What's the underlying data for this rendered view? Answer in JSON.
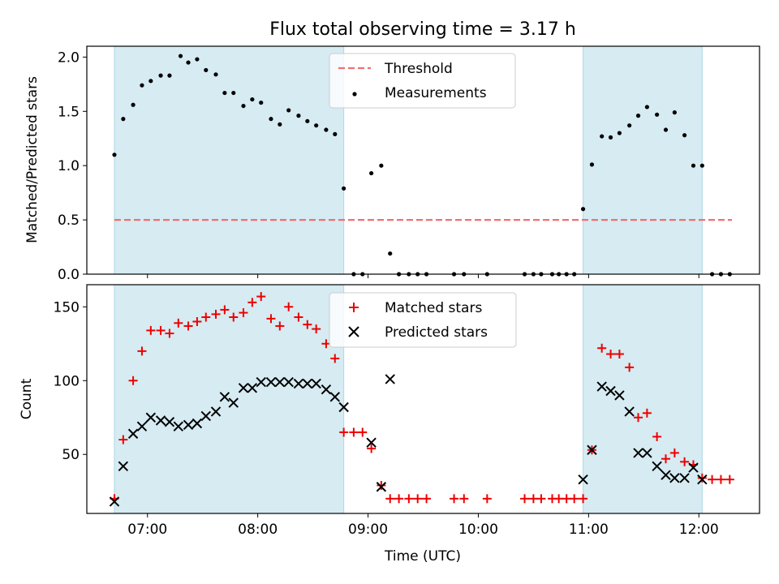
{
  "title": "Flux total observing time = 3.17 h",
  "chart_data": [
    {
      "type": "scatter",
      "panel": "top",
      "ylabel": "Matched/Predicted stars",
      "xlim": [
        6.45,
        12.55
      ],
      "ylim": [
        0.0,
        2.1
      ],
      "yticks": [
        "0.0",
        "0.5",
        "1.0",
        "1.5",
        "2.0"
      ],
      "shaded_intervals": [
        [
          6.7,
          8.78
        ],
        [
          10.95,
          12.03
        ]
      ],
      "threshold": {
        "name": "Threshold",
        "value": 0.5,
        "x_range": [
          6.7,
          12.3
        ],
        "color": "#f07070"
      },
      "legend": [
        "Threshold",
        "Measurements"
      ],
      "legend_position": "top-center",
      "series": [
        {
          "name": "Measurements",
          "color": "#000000",
          "x": [
            6.7,
            6.78,
            6.87,
            6.95,
            7.03,
            7.12,
            7.2,
            7.3,
            7.37,
            7.45,
            7.53,
            7.62,
            7.7,
            7.78,
            7.87,
            7.95,
            8.03,
            8.12,
            8.2,
            8.28,
            8.37,
            8.45,
            8.53,
            8.62,
            8.7,
            8.78,
            8.87,
            8.95,
            9.03,
            9.12,
            9.2,
            9.28,
            9.37,
            9.45,
            9.53,
            9.78,
            9.87,
            10.08,
            10.42,
            10.5,
            10.57,
            10.67,
            10.73,
            10.8,
            10.87,
            10.95,
            11.03,
            11.12,
            11.2,
            11.28,
            11.37,
            11.45,
            11.53,
            11.62,
            11.7,
            11.78,
            11.87,
            11.95,
            12.03,
            12.12,
            12.2,
            12.28
          ],
          "y": [
            1.1,
            1.43,
            1.56,
            1.74,
            1.78,
            1.83,
            1.83,
            2.01,
            1.95,
            1.98,
            1.88,
            1.84,
            1.67,
            1.67,
            1.55,
            1.61,
            1.58,
            1.43,
            1.38,
            1.51,
            1.46,
            1.41,
            1.37,
            1.33,
            1.29,
            0.79,
            0.0,
            0.0,
            0.93,
            1.0,
            0.19,
            0.0,
            0.0,
            0.0,
            0.0,
            0.0,
            0.0,
            0.0,
            0.0,
            0.0,
            0.0,
            0.0,
            0.0,
            0.0,
            0.0,
            0.6,
            1.01,
            1.27,
            1.26,
            1.3,
            1.37,
            1.46,
            1.54,
            1.47,
            1.33,
            1.49,
            1.28,
            1.0,
            1.0,
            0.0,
            0.0,
            0.0
          ]
        }
      ]
    },
    {
      "type": "scatter",
      "panel": "bottom",
      "xlabel": "Time (UTC)",
      "ylabel": "Count",
      "xlim": [
        6.45,
        12.55
      ],
      "ylim": [
        10,
        165
      ],
      "yticks": [
        "50",
        "100",
        "150"
      ],
      "xtick_labels": [
        "07:00",
        "08:00",
        "09:00",
        "10:00",
        "11:00",
        "12:00"
      ],
      "shaded_intervals": [
        [
          6.7,
          8.78
        ],
        [
          10.95,
          12.03
        ]
      ],
      "legend": [
        "Matched stars",
        "Predicted stars"
      ],
      "legend_position": "top-center",
      "series": [
        {
          "name": "Matched stars",
          "marker": "+",
          "color": "#ee0000",
          "x": [
            6.7,
            6.78,
            6.87,
            6.95,
            7.03,
            7.12,
            7.2,
            7.28,
            7.37,
            7.45,
            7.53,
            7.62,
            7.7,
            7.78,
            7.87,
            7.95,
            8.03,
            8.12,
            8.2,
            8.28,
            8.37,
            8.45,
            8.53,
            8.62,
            8.7,
            8.78,
            8.87,
            8.95,
            9.03,
            9.12,
            9.2,
            9.28,
            9.37,
            9.45,
            9.53,
            9.78,
            9.87,
            10.08,
            10.42,
            10.5,
            10.57,
            10.67,
            10.73,
            10.8,
            10.87,
            10.95,
            11.03,
            11.12,
            11.2,
            11.28,
            11.37,
            11.45,
            11.53,
            11.62,
            11.7,
            11.78,
            11.87,
            11.95,
            12.03,
            12.12,
            12.2,
            12.28
          ],
          "y": [
            20,
            60,
            100,
            120,
            134,
            134,
            132,
            139,
            137,
            140,
            143,
            145,
            148,
            143,
            146,
            153,
            157,
            142,
            137,
            150,
            143,
            138,
            135,
            125,
            115,
            65,
            65,
            65,
            54,
            29,
            20,
            20,
            20,
            20,
            20,
            20,
            20,
            20,
            20,
            20,
            20,
            20,
            20,
            20,
            20,
            20,
            53,
            122,
            118,
            118,
            109,
            75,
            78,
            62,
            47,
            51,
            45,
            43,
            34,
            33,
            33,
            33
          ]
        },
        {
          "name": "Predicted stars",
          "marker": "x",
          "color": "#000000",
          "x": [
            6.7,
            6.78,
            6.87,
            6.95,
            7.03,
            7.12,
            7.2,
            7.28,
            7.37,
            7.45,
            7.53,
            7.62,
            7.7,
            7.78,
            7.87,
            7.95,
            8.03,
            8.12,
            8.2,
            8.28,
            8.37,
            8.45,
            8.53,
            8.62,
            8.7,
            8.78,
            9.03,
            9.12,
            9.2,
            10.95,
            11.03,
            11.12,
            11.2,
            11.28,
            11.37,
            11.45,
            11.53,
            11.62,
            11.7,
            11.78,
            11.87,
            11.95,
            12.03
          ],
          "y": [
            18,
            42,
            64,
            69,
            75,
            73,
            72,
            69,
            70,
            71,
            76,
            79,
            89,
            85,
            95,
            95,
            99,
            99,
            99,
            99,
            98,
            98,
            98,
            94,
            89,
            82,
            58,
            28,
            101,
            33,
            53,
            96,
            93,
            90,
            79,
            51,
            51,
            42,
            36,
            34,
            34,
            41,
            33
          ]
        }
      ]
    }
  ]
}
